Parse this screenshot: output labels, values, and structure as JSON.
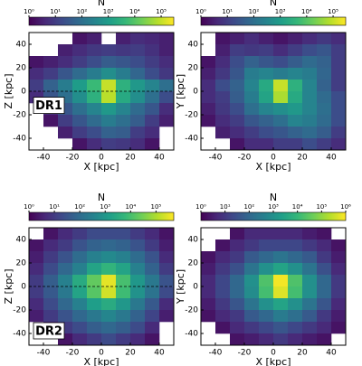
{
  "chart_data": [
    {
      "type": "heatmap",
      "xlabel": "X [kpc]",
      "ylabel": "Z [kpc]",
      "annotation": "DR1",
      "hline": 0,
      "xlim": [
        -50,
        50
      ],
      "ylim": [
        -50,
        50
      ],
      "xticks": [
        -40,
        -20,
        0,
        20,
        40
      ],
      "yticks": [
        -40,
        -20,
        0,
        20,
        40
      ],
      "colorbar_label": "N",
      "log_color": true,
      "clim": [
        1,
        300000
      ],
      "cticks": [
        {
          "value": 1,
          "label": "10⁰"
        },
        {
          "value": 10,
          "label": "10¹"
        },
        {
          "value": 100,
          "label": "10²"
        },
        {
          "value": 1000,
          "label": "10³"
        },
        {
          "value": 10000,
          "label": "10⁴"
        },
        {
          "value": 100000,
          "label": "10⁵"
        }
      ],
      "colorscale": [
        "#440154",
        "#482878",
        "#3e4989",
        "#31688e",
        "#26828e",
        "#1f9e89",
        "#35b779",
        "#6ece58",
        "#b5de2b",
        "#fde725"
      ],
      "z": [
        [
          null,
          null,
          null,
          2,
          3,
          null,
          3,
          5,
          4,
          3
        ],
        [
          null,
          null,
          3,
          5,
          8,
          10,
          8,
          10,
          6,
          3
        ],
        [
          2,
          3,
          5,
          10,
          20,
          40,
          30,
          20,
          10,
          5
        ],
        [
          5,
          10,
          30,
          80,
          200,
          500,
          200,
          60,
          20,
          8
        ],
        [
          10,
          50,
          200,
          1000,
          5000,
          100000,
          3000,
          800,
          300,
          100
        ],
        [
          5,
          30,
          100,
          500,
          3000,
          80000,
          2000,
          500,
          100,
          20
        ],
        [
          null,
          5,
          30,
          100,
          300,
          800,
          300,
          80,
          30,
          5
        ],
        [
          null,
          2,
          10,
          30,
          80,
          200,
          100,
          40,
          10,
          3
        ],
        [
          null,
          null,
          3,
          10,
          20,
          50,
          40,
          10,
          5,
          null
        ],
        [
          null,
          null,
          null,
          2,
          5,
          10,
          8,
          5,
          2,
          null
        ]
      ]
    },
    {
      "type": "heatmap",
      "xlabel": "X [kpc]",
      "ylabel": "Y [kpc]",
      "xlim": [
        -50,
        50
      ],
      "ylim": [
        -50,
        50
      ],
      "xticks": [
        -40,
        -20,
        0,
        20,
        40
      ],
      "yticks": [
        -40,
        -20,
        0,
        20,
        40
      ],
      "colorbar_label": "N",
      "log_color": true,
      "clim": [
        1,
        300000
      ],
      "cticks": [
        {
          "value": 1,
          "label": "10⁰"
        },
        {
          "value": 10,
          "label": "10¹"
        },
        {
          "value": 100,
          "label": "10²"
        },
        {
          "value": 1000,
          "label": "10³"
        },
        {
          "value": 10000,
          "label": "10⁴"
        },
        {
          "value": 100000,
          "label": "10⁵"
        }
      ],
      "colorscale": [
        "#440154",
        "#482878",
        "#3e4989",
        "#31688e",
        "#26828e",
        "#1f9e89",
        "#35b779",
        "#6ece58",
        "#b5de2b",
        "#fde725"
      ],
      "z": [
        [
          null,
          2,
          3,
          5,
          3,
          2,
          3,
          5,
          8,
          5
        ],
        [
          null,
          3,
          10,
          8,
          10,
          5,
          10,
          20,
          30,
          10
        ],
        [
          2,
          5,
          20,
          50,
          30,
          20,
          40,
          80,
          50,
          10
        ],
        [
          3,
          8,
          30,
          200,
          300,
          200,
          300,
          200,
          60,
          10
        ],
        [
          5,
          20,
          50,
          300,
          2000,
          100000,
          3000,
          300,
          50,
          10
        ],
        [
          5,
          10,
          40,
          200,
          1500,
          60000,
          2000,
          300,
          80,
          20
        ],
        [
          3,
          8,
          20,
          100,
          300,
          500,
          800,
          300,
          100,
          20
        ],
        [
          2,
          5,
          10,
          30,
          50,
          100,
          300,
          200,
          80,
          20
        ],
        [
          null,
          3,
          5,
          10,
          20,
          30,
          50,
          80,
          40,
          10
        ],
        [
          null,
          null,
          2,
          5,
          5,
          10,
          10,
          20,
          10,
          5
        ]
      ]
    },
    {
      "type": "heatmap",
      "xlabel": "X [kpc]",
      "ylabel": "Z [kpc]",
      "annotation": "DR2",
      "hline": 0,
      "xlim": [
        -50,
        50
      ],
      "ylim": [
        -50,
        50
      ],
      "xticks": [
        -40,
        -20,
        0,
        20,
        40
      ],
      "yticks": [
        -40,
        -20,
        0,
        20,
        40
      ],
      "colorbar_label": "N",
      "log_color": true,
      "clim": [
        1,
        500000
      ],
      "cticks": [
        {
          "value": 1,
          "label": "10⁰"
        },
        {
          "value": 10,
          "label": "10¹"
        },
        {
          "value": 100,
          "label": "10²"
        },
        {
          "value": 1000,
          "label": "10³"
        },
        {
          "value": 10000,
          "label": "10⁴"
        },
        {
          "value": 100000,
          "label": "10⁵"
        }
      ],
      "colorscale": [
        "#440154",
        "#482878",
        "#3e4989",
        "#31688e",
        "#26828e",
        "#1f9e89",
        "#35b779",
        "#6ece58",
        "#b5de2b",
        "#fde725"
      ],
      "z": [
        [
          null,
          2,
          5,
          10,
          20,
          20,
          20,
          10,
          5,
          2
        ],
        [
          2,
          5,
          10,
          30,
          60,
          80,
          60,
          30,
          10,
          3
        ],
        [
          3,
          10,
          30,
          100,
          300,
          500,
          300,
          100,
          30,
          5
        ],
        [
          5,
          20,
          80,
          300,
          2000,
          5000,
          2000,
          300,
          60,
          10
        ],
        [
          10,
          50,
          300,
          3000,
          20000,
          300000,
          10000,
          1000,
          200,
          30
        ],
        [
          10,
          40,
          200,
          2000,
          15000,
          200000,
          8000,
          800,
          150,
          20
        ],
        [
          5,
          20,
          80,
          300,
          1500,
          3000,
          1000,
          200,
          40,
          5
        ],
        [
          3,
          10,
          30,
          80,
          200,
          400,
          200,
          60,
          15,
          3
        ],
        [
          null,
          3,
          10,
          20,
          50,
          80,
          50,
          20,
          5,
          null
        ],
        [
          null,
          null,
          2,
          5,
          10,
          20,
          10,
          5,
          2,
          null
        ]
      ]
    },
    {
      "type": "heatmap",
      "xlabel": "X [kpc]",
      "ylabel": "Y [kpc]",
      "xlim": [
        -50,
        50
      ],
      "ylim": [
        -50,
        50
      ],
      "xticks": [
        -40,
        -20,
        0,
        20,
        40
      ],
      "yticks": [
        -40,
        -20,
        0,
        20,
        40
      ],
      "colorbar_label": "N",
      "log_color": true,
      "clim": [
        1,
        1000000
      ],
      "cticks": [
        {
          "value": 1,
          "label": "10⁰"
        },
        {
          "value": 10,
          "label": "10¹"
        },
        {
          "value": 100,
          "label": "10²"
        },
        {
          "value": 1000,
          "label": "10³"
        },
        {
          "value": 10000,
          "label": "10⁴"
        },
        {
          "value": 100000,
          "label": "10⁵"
        },
        {
          "value": 1000000,
          "label": "10⁶"
        }
      ],
      "colorscale": [
        "#440154",
        "#482878",
        "#3e4989",
        "#31688e",
        "#26828e",
        "#1f9e89",
        "#35b779",
        "#6ece58",
        "#b5de2b",
        "#fde725"
      ],
      "z": [
        [
          null,
          null,
          2,
          5,
          5,
          5,
          5,
          3,
          2,
          null
        ],
        [
          null,
          2,
          5,
          10,
          20,
          20,
          20,
          10,
          5,
          2
        ],
        [
          2,
          5,
          10,
          50,
          100,
          200,
          100,
          50,
          10,
          3
        ],
        [
          3,
          10,
          30,
          200,
          1000,
          3000,
          1000,
          200,
          30,
          5
        ],
        [
          5,
          20,
          100,
          1000,
          20000,
          800000,
          20000,
          1000,
          100,
          10
        ],
        [
          5,
          20,
          100,
          800,
          15000,
          500000,
          15000,
          1000,
          100,
          10
        ],
        [
          3,
          10,
          40,
          200,
          1000,
          3000,
          1000,
          200,
          40,
          5
        ],
        [
          2,
          5,
          10,
          50,
          100,
          300,
          150,
          50,
          10,
          3
        ],
        [
          null,
          2,
          5,
          10,
          20,
          40,
          20,
          10,
          5,
          2
        ],
        [
          null,
          null,
          2,
          3,
          5,
          10,
          5,
          3,
          2,
          null
        ]
      ]
    }
  ]
}
